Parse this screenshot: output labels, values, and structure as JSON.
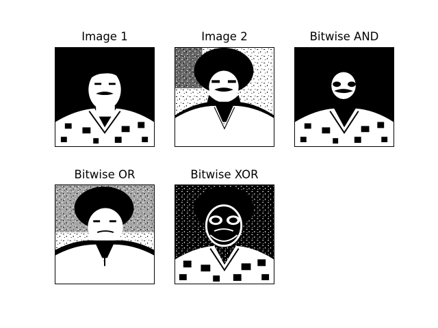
{
  "panels": [
    {
      "title": "Image 1"
    },
    {
      "title": "Image 2"
    },
    {
      "title": "Bitwise AND"
    },
    {
      "title": "Bitwise OR"
    },
    {
      "title": "Bitwise XOR"
    }
  ]
}
